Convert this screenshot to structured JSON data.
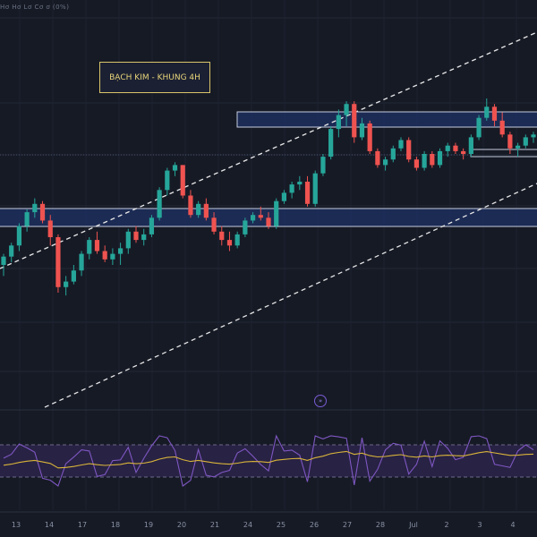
{
  "header": {
    "ohlc_text": "Hơ Hơ Lơ Cơ ơ (0%)"
  },
  "title_box": {
    "text": "BẠCH KIM - KHUNG 4H"
  },
  "scroll_button": {
    "icon": "chevron-double-right-icon"
  },
  "colors": {
    "background": "#161a25",
    "up": "#26a69a",
    "down": "#ef5350",
    "zone_fill": "#1f3264",
    "zone_border": "#c7cde0",
    "channel": "#e6e6e6",
    "rsi_line": "#7e57c2",
    "rsi_ma": "#d8b43a"
  },
  "chart_data": {
    "type": "candlestick",
    "title": "BẠCH KIM - KHUNG 4H",
    "x_tick_labels": [
      "13",
      "14",
      "17",
      "18",
      "19",
      "20",
      "21",
      "24",
      "25",
      "26",
      "27",
      "28",
      "Jul",
      "2",
      "3",
      "4"
    ],
    "price_min": 0,
    "price_max": 100,
    "grid": true,
    "candles": [
      {
        "o": 40,
        "h": 44,
        "l": 36,
        "c": 43
      },
      {
        "o": 43,
        "h": 48,
        "l": 41,
        "c": 47
      },
      {
        "o": 47,
        "h": 55,
        "l": 45,
        "c": 54
      },
      {
        "o": 54,
        "h": 60,
        "l": 52,
        "c": 59
      },
      {
        "o": 59,
        "h": 64,
        "l": 57,
        "c": 62
      },
      {
        "o": 62,
        "h": 63,
        "l": 55,
        "c": 56
      },
      {
        "o": 56,
        "h": 58,
        "l": 47,
        "c": 50
      },
      {
        "o": 50,
        "h": 51,
        "l": 30,
        "c": 32
      },
      {
        "o": 32,
        "h": 36,
        "l": 29,
        "c": 34
      },
      {
        "o": 34,
        "h": 40,
        "l": 33,
        "c": 38
      },
      {
        "o": 38,
        "h": 45,
        "l": 36,
        "c": 44
      },
      {
        "o": 44,
        "h": 50,
        "l": 42,
        "c": 49
      },
      {
        "o": 49,
        "h": 52,
        "l": 44,
        "c": 45
      },
      {
        "o": 45,
        "h": 47,
        "l": 41,
        "c": 42
      },
      {
        "o": 42,
        "h": 46,
        "l": 40,
        "c": 44
      },
      {
        "o": 44,
        "h": 48,
        "l": 40,
        "c": 46
      },
      {
        "o": 46,
        "h": 53,
        "l": 44,
        "c": 52
      },
      {
        "o": 52,
        "h": 54,
        "l": 48,
        "c": 49
      },
      {
        "o": 49,
        "h": 53,
        "l": 47,
        "c": 51
      },
      {
        "o": 51,
        "h": 58,
        "l": 50,
        "c": 57
      },
      {
        "o": 57,
        "h": 68,
        "l": 56,
        "c": 67
      },
      {
        "o": 67,
        "h": 75,
        "l": 65,
        "c": 74
      },
      {
        "o": 74,
        "h": 77,
        "l": 72,
        "c": 76
      },
      {
        "o": 76,
        "h": 76,
        "l": 64,
        "c": 65
      },
      {
        "o": 65,
        "h": 67,
        "l": 57,
        "c": 58
      },
      {
        "o": 58,
        "h": 63,
        "l": 57,
        "c": 62
      },
      {
        "o": 62,
        "h": 64,
        "l": 56,
        "c": 57
      },
      {
        "o": 57,
        "h": 59,
        "l": 51,
        "c": 52
      },
      {
        "o": 52,
        "h": 54,
        "l": 47,
        "c": 49
      },
      {
        "o": 49,
        "h": 52,
        "l": 45,
        "c": 47
      },
      {
        "o": 47,
        "h": 52,
        "l": 46,
        "c": 51
      },
      {
        "o": 51,
        "h": 57,
        "l": 50,
        "c": 56
      },
      {
        "o": 56,
        "h": 59,
        "l": 55,
        "c": 58
      },
      {
        "o": 58,
        "h": 61,
        "l": 56,
        "c": 57
      },
      {
        "o": 57,
        "h": 59,
        "l": 53,
        "c": 54
      },
      {
        "o": 54,
        "h": 64,
        "l": 53,
        "c": 63
      },
      {
        "o": 63,
        "h": 67,
        "l": 62,
        "c": 66
      },
      {
        "o": 66,
        "h": 70,
        "l": 64,
        "c": 69
      },
      {
        "o": 69,
        "h": 72,
        "l": 67,
        "c": 70
      },
      {
        "o": 70,
        "h": 72,
        "l": 61,
        "c": 62
      },
      {
        "o": 62,
        "h": 74,
        "l": 61,
        "c": 73
      },
      {
        "o": 73,
        "h": 80,
        "l": 72,
        "c": 79
      },
      {
        "o": 79,
        "h": 90,
        "l": 78,
        "c": 89
      },
      {
        "o": 89,
        "h": 96,
        "l": 86,
        "c": 94
      },
      {
        "o": 94,
        "h": 99,
        "l": 90,
        "c": 98
      },
      {
        "o": 98,
        "h": 99,
        "l": 84,
        "c": 86
      },
      {
        "o": 86,
        "h": 93,
        "l": 85,
        "c": 91
      },
      {
        "o": 91,
        "h": 92,
        "l": 80,
        "c": 81
      },
      {
        "o": 81,
        "h": 82,
        "l": 75,
        "c": 76
      },
      {
        "o": 76,
        "h": 79,
        "l": 74,
        "c": 78
      },
      {
        "o": 78,
        "h": 83,
        "l": 77,
        "c": 82
      },
      {
        "o": 82,
        "h": 86,
        "l": 81,
        "c": 85
      },
      {
        "o": 85,
        "h": 86,
        "l": 77,
        "c": 78
      },
      {
        "o": 78,
        "h": 79,
        "l": 74,
        "c": 75
      },
      {
        "o": 75,
        "h": 81,
        "l": 74,
        "c": 80
      },
      {
        "o": 80,
        "h": 81,
        "l": 75,
        "c": 76
      },
      {
        "o": 76,
        "h": 82,
        "l": 75,
        "c": 81
      },
      {
        "o": 81,
        "h": 84,
        "l": 79,
        "c": 83
      },
      {
        "o": 83,
        "h": 84,
        "l": 80,
        "c": 81
      },
      {
        "o": 81,
        "h": 82,
        "l": 78,
        "c": 80
      },
      {
        "o": 80,
        "h": 87,
        "l": 79,
        "c": 86
      },
      {
        "o": 86,
        "h": 94,
        "l": 85,
        "c": 93
      },
      {
        "o": 93,
        "h": 100,
        "l": 92,
        "c": 97
      },
      {
        "o": 97,
        "h": 98,
        "l": 90,
        "c": 92
      },
      {
        "o": 92,
        "h": 95,
        "l": 86,
        "c": 87
      },
      {
        "o": 87,
        "h": 88,
        "l": 80,
        "c": 82
      },
      {
        "o": 82,
        "h": 84,
        "l": 79,
        "c": 83
      },
      {
        "o": 83,
        "h": 87,
        "l": 82,
        "c": 86
      },
      {
        "o": 86,
        "h": 88,
        "l": 84,
        "c": 87
      }
    ]
  }
}
